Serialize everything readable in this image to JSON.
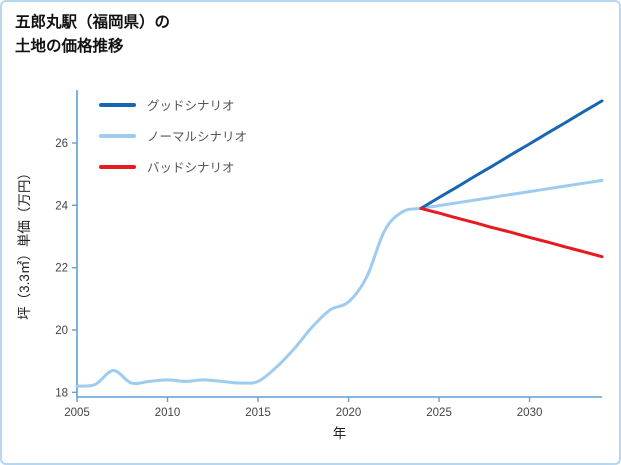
{
  "header": {
    "title_line1": "五郎丸駅（福岡県）の",
    "title_line2": "土地の価格推移"
  },
  "chart_data": {
    "type": "line",
    "title": "五郎丸駅（福岡県）の土地の価格推移",
    "xlabel": "年",
    "ylabel": "坪（3.3㎡）単価（万円）",
    "xlim": [
      2005,
      2034
    ],
    "ylim": [
      17.85,
      27.7
    ],
    "xticks": [
      2005,
      2010,
      2015,
      2020,
      2025,
      2030
    ],
    "yticks": [
      18,
      20,
      22,
      24,
      26
    ],
    "grid": false,
    "legend_position": "upper-left",
    "axis_color": "#5f9fd8",
    "tick_color": "#444444",
    "series": [
      {
        "id": "normal",
        "name": "ノーマルシナリオ",
        "color": "#9ecbf0",
        "x": [
          2005,
          2006,
          2007,
          2008,
          2009,
          2010,
          2011,
          2012,
          2013,
          2014,
          2015,
          2016,
          2017,
          2018,
          2019,
          2020,
          2021,
          2022,
          2023,
          2024,
          2025,
          2026,
          2027,
          2028,
          2029,
          2030,
          2031,
          2032,
          2033,
          2034
        ],
        "values": [
          18.2,
          18.25,
          18.7,
          18.3,
          18.35,
          18.4,
          18.35,
          18.4,
          18.35,
          18.3,
          18.35,
          18.8,
          19.4,
          20.1,
          20.65,
          20.9,
          21.7,
          23.2,
          23.8,
          23.9,
          23.99,
          24.08,
          24.17,
          24.26,
          24.35,
          24.44,
          24.53,
          24.62,
          24.71,
          24.8
        ]
      },
      {
        "id": "good",
        "name": "グッドシナリオ",
        "color": "#1766b3",
        "x": [
          2024,
          2025,
          2026,
          2027,
          2028,
          2029,
          2030,
          2031,
          2032,
          2033,
          2034
        ],
        "values": [
          23.9,
          24.25,
          24.59,
          24.94,
          25.28,
          25.63,
          25.97,
          26.32,
          26.66,
          27.01,
          27.35
        ]
      },
      {
        "id": "bad",
        "name": "バッドシナリオ",
        "color": "#e8191f",
        "x": [
          2024,
          2025,
          2026,
          2027,
          2028,
          2029,
          2030,
          2031,
          2032,
          2033,
          2034
        ],
        "values": [
          23.9,
          23.75,
          23.59,
          23.44,
          23.28,
          23.13,
          22.97,
          22.82,
          22.66,
          22.51,
          22.35
        ]
      }
    ],
    "legend_order": [
      1,
      0,
      2
    ]
  }
}
